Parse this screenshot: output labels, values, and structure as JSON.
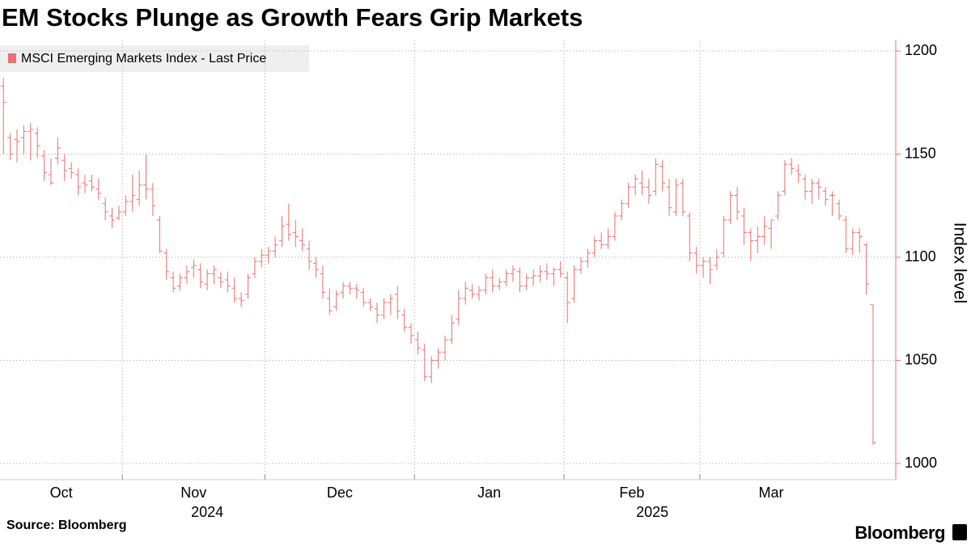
{
  "chart_data": {
    "type": "ohlc",
    "title": "EM Stocks Plunge as Growth Fears Grip Markets",
    "source": "Source: Bloomberg",
    "brand": "Bloomberg",
    "y_label": "Index level",
    "ylim": [
      1000,
      1200
    ],
    "yticks": [
      1000,
      1050,
      1100,
      1150,
      1200
    ],
    "xlim": [
      -0.5,
      130.5
    ],
    "xticks": [
      {
        "value": 0,
        "label": "Oct"
      },
      {
        "value": 18,
        "label": "Nov"
      },
      {
        "value": 39,
        "label": "Dec"
      },
      {
        "value": 61,
        "label": "Jan"
      },
      {
        "value": 83,
        "label": "Feb"
      },
      {
        "value": 103,
        "label": "Mar"
      }
    ],
    "xticks2": [
      {
        "value": 30,
        "label": "2024"
      },
      {
        "value": 95.5,
        "label": "2025"
      }
    ],
    "grid": true,
    "series": [
      {
        "name": "MSCI Emerging Markets Index - Last Price",
        "color": "#e8706f",
        "open": [
          1183,
          1158,
          1157,
          1158,
          1161,
          1160,
          1149,
          1140,
          1148,
          1147,
          1143,
          1140,
          1136,
          1137,
          1133,
          1126,
          1120,
          1119,
          1122,
          1127,
          1128,
          1135,
          1133,
          1118,
          1102,
          1090,
          1086,
          1090,
          1095,
          1094,
          1087,
          1092,
          1090,
          1089,
          1085,
          1080,
          1082,
          1092,
          1098,
          1101,
          1103,
          1108,
          1116,
          1112,
          1108,
          1104,
          1097,
          1092,
          1080,
          1076,
          1083,
          1086,
          1085,
          1083,
          1078,
          1075,
          1072,
          1078,
          1082,
          1072,
          1066,
          1060,
          1055,
          1042,
          1050,
          1054,
          1060,
          1070,
          1080,
          1084,
          1082,
          1084,
          1090,
          1086,
          1088,
          1092,
          1093,
          1086,
          1090,
          1091,
          1093,
          1092,
          1094,
          1090,
          1080,
          1094,
          1098,
          1102,
          1108,
          1106,
          1110,
          1120,
          1126,
          1134,
          1136,
          1134,
          1132,
          1144,
          1134,
          1122,
          1136,
          1120,
          1102,
          1096,
          1098,
          1096,
          1102,
          1118,
          1130,
          1120,
          1112,
          1108,
          1110,
          1114,
          1120,
          1132,
          1145,
          1142,
          1138,
          1132,
          1136,
          1132,
          1130,
          1126,
          1118,
          1104,
          1112,
          1106,
          1077
        ],
        "high": [
          1187,
          1160,
          1162,
          1164,
          1165,
          1163,
          1152,
          1148,
          1158,
          1150,
          1146,
          1143,
          1140,
          1140,
          1138,
          1129,
          1124,
          1125,
          1130,
          1140,
          1142,
          1150,
          1136,
          1120,
          1104,
          1093,
          1092,
          1096,
          1099,
          1097,
          1094,
          1096,
          1093,
          1093,
          1090,
          1083,
          1092,
          1100,
          1104,
          1105,
          1110,
          1120,
          1126,
          1118,
          1114,
          1108,
          1100,
          1096,
          1085,
          1084,
          1088,
          1088,
          1087,
          1085,
          1080,
          1078,
          1080,
          1082,
          1086,
          1075,
          1068,
          1064,
          1058,
          1052,
          1056,
          1062,
          1072,
          1084,
          1088,
          1087,
          1086,
          1092,
          1094,
          1090,
          1094,
          1096,
          1095,
          1092,
          1094,
          1096,
          1097,
          1095,
          1098,
          1093,
          1096,
          1100,
          1104,
          1110,
          1112,
          1114,
          1122,
          1128,
          1136,
          1140,
          1142,
          1138,
          1148,
          1147,
          1138,
          1138,
          1138,
          1122,
          1105,
          1100,
          1100,
          1104,
          1120,
          1132,
          1134,
          1124,
          1114,
          1115,
          1120,
          1118,
          1132,
          1147,
          1148,
          1145,
          1140,
          1138,
          1138,
          1134,
          1132,
          1128,
          1120,
          1114,
          1114,
          1107,
          1077
        ],
        "low": [
          1150,
          1147,
          1146,
          1150,
          1147,
          1148,
          1137,
          1135,
          1145,
          1137,
          1138,
          1130,
          1131,
          1132,
          1128,
          1118,
          1114,
          1118,
          1120,
          1122,
          1125,
          1128,
          1120,
          1102,
          1089,
          1083,
          1084,
          1087,
          1090,
          1085,
          1084,
          1087,
          1085,
          1083,
          1078,
          1076,
          1080,
          1090,
          1095,
          1097,
          1100,
          1105,
          1108,
          1105,
          1103,
          1094,
          1090,
          1080,
          1072,
          1074,
          1080,
          1082,
          1080,
          1076,
          1074,
          1068,
          1070,
          1072,
          1070,
          1064,
          1058,
          1053,
          1040,
          1039,
          1046,
          1050,
          1058,
          1067,
          1077,
          1080,
          1079,
          1082,
          1083,
          1084,
          1086,
          1088,
          1083,
          1084,
          1086,
          1088,
          1089,
          1086,
          1090,
          1068,
          1078,
          1092,
          1095,
          1100,
          1104,
          1104,
          1108,
          1118,
          1124,
          1130,
          1130,
          1126,
          1130,
          1132,
          1120,
          1120,
          1120,
          1098,
          1092,
          1090,
          1087,
          1094,
          1100,
          1116,
          1118,
          1106,
          1098,
          1102,
          1106,
          1104,
          1118,
          1130,
          1140,
          1136,
          1128,
          1126,
          1128,
          1125,
          1120,
          1118,
          1102,
          1101,
          1102,
          1082,
          1009
        ],
        "close": [
          1175,
          1150,
          1156,
          1161,
          1162,
          1154,
          1141,
          1136,
          1153,
          1142,
          1141,
          1134,
          1135,
          1134,
          1131,
          1122,
          1118,
          1122,
          1127,
          1130,
          1135,
          1133,
          1125,
          1103,
          1093,
          1085,
          1090,
          1093,
          1096,
          1088,
          1092,
          1094,
          1088,
          1086,
          1080,
          1079,
          1090,
          1098,
          1101,
          1103,
          1106,
          1115,
          1111,
          1110,
          1106,
          1098,
          1094,
          1083,
          1074,
          1082,
          1086,
          1085,
          1084,
          1078,
          1076,
          1072,
          1078,
          1080,
          1074,
          1066,
          1062,
          1056,
          1042,
          1050,
          1054,
          1060,
          1068,
          1080,
          1085,
          1082,
          1084,
          1090,
          1086,
          1088,
          1092,
          1094,
          1086,
          1090,
          1091,
          1093,
          1092,
          1094,
          1092,
          1078,
          1094,
          1098,
          1102,
          1108,
          1106,
          1110,
          1120,
          1126,
          1134,
          1138,
          1134,
          1130,
          1145,
          1136,
          1124,
          1135,
          1122,
          1102,
          1096,
          1098,
          1094,
          1100,
          1118,
          1130,
          1122,
          1112,
          1108,
          1110,
          1115,
          1118,
          1130,
          1145,
          1143,
          1140,
          1132,
          1136,
          1134,
          1128,
          1130,
          1120,
          1104,
          1112,
          1110,
          1087,
          1010
        ]
      }
    ]
  }
}
